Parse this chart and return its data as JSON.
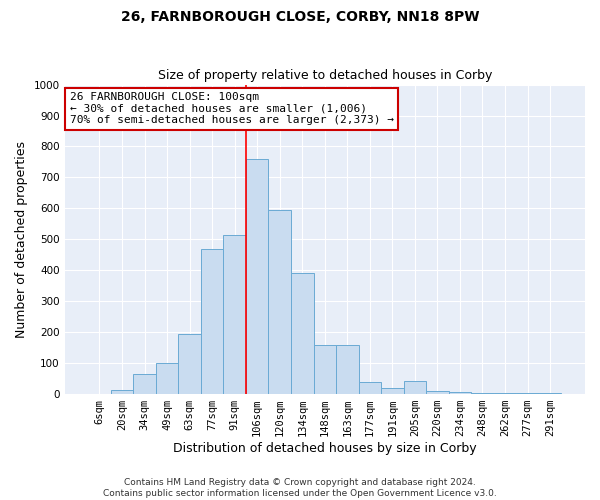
{
  "title_line1": "26, FARNBOROUGH CLOSE, CORBY, NN18 8PW",
  "title_line2": "Size of property relative to detached houses in Corby",
  "xlabel": "Distribution of detached houses by size in Corby",
  "ylabel": "Number of detached properties",
  "footnote": "Contains HM Land Registry data © Crown copyright and database right 2024.\nContains public sector information licensed under the Open Government Licence v3.0.",
  "categories": [
    "6sqm",
    "20sqm",
    "34sqm",
    "49sqm",
    "63sqm",
    "77sqm",
    "91sqm",
    "106sqm",
    "120sqm",
    "134sqm",
    "148sqm",
    "163sqm",
    "177sqm",
    "191sqm",
    "205sqm",
    "220sqm",
    "234sqm",
    "248sqm",
    "262sqm",
    "277sqm",
    "291sqm"
  ],
  "values": [
    0,
    13,
    65,
    100,
    195,
    470,
    515,
    760,
    595,
    390,
    160,
    160,
    40,
    20,
    43,
    10,
    7,
    3,
    2,
    2,
    5
  ],
  "bar_color": "#c9dcf0",
  "bar_edge_color": "#6aaad4",
  "red_line_index": 7,
  "annotation_text": "26 FARNBOROUGH CLOSE: 100sqm\n← 30% of detached houses are smaller (1,006)\n70% of semi-detached houses are larger (2,373) →",
  "ylim": [
    0,
    1000
  ],
  "yticks": [
    0,
    100,
    200,
    300,
    400,
    500,
    600,
    700,
    800,
    900,
    1000
  ],
  "background_color": "#e8eef8",
  "grid_color": "#ffffff",
  "annotation_box_facecolor": "#ffffff",
  "annotation_box_edgecolor": "#cc0000",
  "fig_facecolor": "#ffffff",
  "title_fontsize": 10,
  "subtitle_fontsize": 9,
  "axis_label_fontsize": 9,
  "tick_fontsize": 7.5,
  "annotation_fontsize": 8,
  "footnote_fontsize": 6.5
}
